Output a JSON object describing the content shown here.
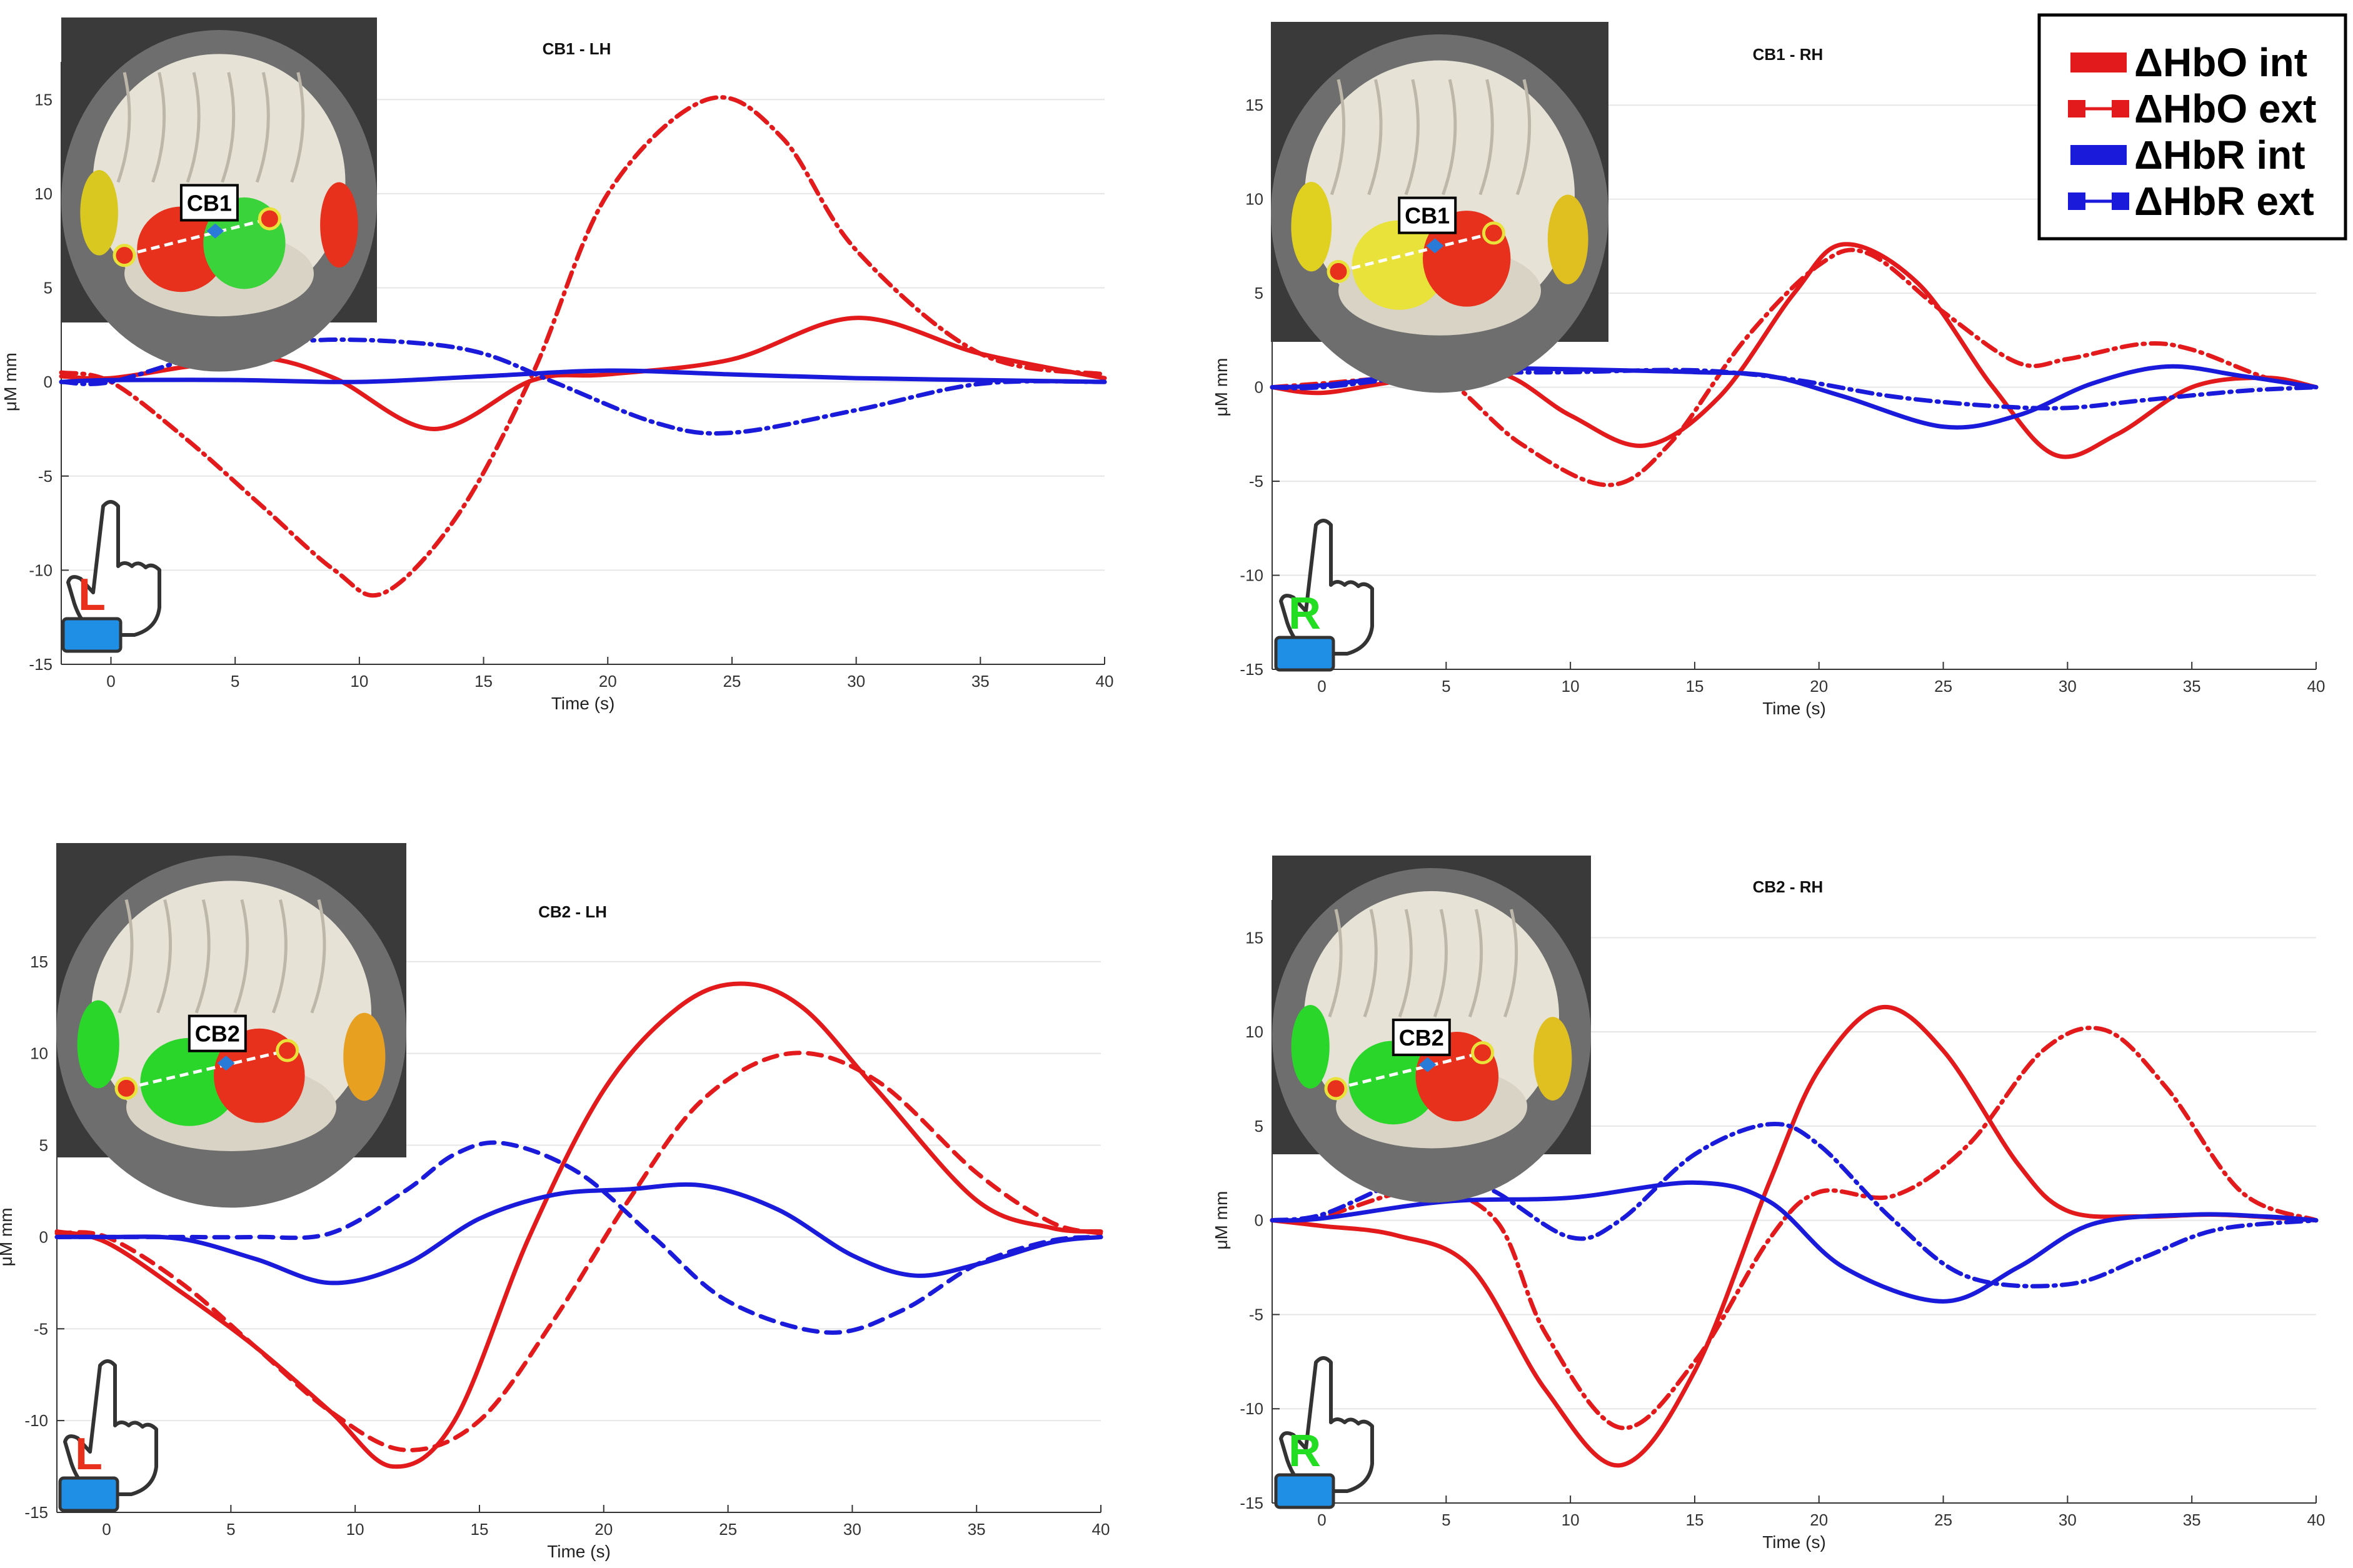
{
  "chart_data": [
    {
      "type": "line",
      "title": "CB1 - LH",
      "xlabel": "Time (s)",
      "ylabel": "μM mm",
      "xlim": [
        -2,
        40
      ],
      "ylim": [
        -15,
        17
      ],
      "xticks": [
        0,
        5,
        10,
        15,
        20,
        25,
        30,
        35,
        40
      ],
      "yticks": [
        -15,
        -10,
        -5,
        0,
        5,
        10,
        15
      ],
      "grid": true,
      "inset_label": "CB1",
      "hand_letter": "L",
      "hand_letter_color": "#e8301c",
      "series": [
        {
          "name": "ΔHbO int",
          "color": "#e31a1c",
          "style": "solid",
          "x": [
            -2,
            0,
            3,
            6,
            9,
            13,
            17,
            20,
            25,
            30,
            35,
            40
          ],
          "y": [
            0.3,
            0.2,
            0.8,
            1.3,
            0.2,
            -2.5,
            0.1,
            0.4,
            1.2,
            3.4,
            1.5,
            0.2
          ]
        },
        {
          "name": "ΔHbO ext",
          "color": "#e31a1c",
          "style": "dashdot",
          "x": [
            -2,
            0,
            3,
            6,
            9,
            11,
            14,
            17,
            20,
            24,
            27,
            30,
            35,
            40
          ],
          "y": [
            0.5,
            0,
            -3,
            -6.5,
            -10,
            -11.2,
            -7,
            0.5,
            10,
            15,
            13,
            7,
            1.5,
            0.4
          ]
        },
        {
          "name": "ΔHbR int",
          "color": "#1a1adb",
          "style": "solid",
          "x": [
            -2,
            0,
            5,
            10,
            15,
            20,
            25,
            30,
            35,
            40
          ],
          "y": [
            0,
            0.1,
            0.1,
            0,
            0.3,
            0.6,
            0.4,
            0.2,
            0.1,
            0
          ]
        },
        {
          "name": "ΔHbR ext",
          "color": "#1a1adb",
          "style": "dashdot",
          "x": [
            -2,
            0,
            4,
            8,
            12,
            15,
            18,
            22,
            25,
            30,
            35,
            40
          ],
          "y": [
            0,
            0,
            1.5,
            2.2,
            2.1,
            1.5,
            -0.1,
            -2.2,
            -2.7,
            -1.5,
            -0.1,
            0
          ]
        }
      ]
    },
    {
      "type": "line",
      "title": "CB1 - RH",
      "xlabel": "Time (s)",
      "ylabel": "μM mm",
      "xlim": [
        -2,
        40
      ],
      "ylim": [
        -15,
        17
      ],
      "xticks": [
        0,
        5,
        10,
        15,
        20,
        25,
        30,
        35,
        40
      ],
      "yticks": [
        -15,
        -10,
        -5,
        0,
        5,
        10,
        15
      ],
      "grid": true,
      "inset_label": "CB1",
      "hand_letter": "R",
      "hand_letter_color": "#22dd22",
      "series": [
        {
          "name": "ΔHbO int",
          "color": "#e31a1c",
          "style": "solid",
          "x": [
            -2,
            0,
            3,
            7,
            10,
            13,
            16,
            19,
            21,
            24,
            27,
            29.5,
            32,
            35,
            38,
            40
          ],
          "y": [
            0,
            -0.3,
            0.3,
            0.8,
            -1.5,
            -3.1,
            -0.5,
            5,
            7.6,
            5.5,
            0,
            -3.6,
            -2.5,
            0,
            0.5,
            0
          ],
          "smooth": true
        },
        {
          "name": "ΔHbO ext",
          "color": "#e31a1c",
          "style": "dashdot",
          "x": [
            -2,
            0,
            3,
            5,
            8,
            11.5,
            14,
            17,
            20,
            22,
            25,
            28,
            30,
            33,
            35,
            38,
            40
          ],
          "y": [
            0,
            0.2,
            0.5,
            0.4,
            -3,
            -5.2,
            -3,
            2.5,
            6.5,
            7.1,
            4,
            1.3,
            1.5,
            2.3,
            2,
            0.5,
            0
          ]
        },
        {
          "name": "ΔHbR int",
          "color": "#1a1adb",
          "style": "solid",
          "x": [
            -2,
            0,
            3,
            5,
            8,
            12,
            15,
            18,
            21,
            25,
            28,
            31,
            34,
            37,
            40
          ],
          "y": [
            0,
            0.1,
            0.6,
            1,
            1,
            0.9,
            0.8,
            0.6,
            -0.5,
            -2.1,
            -1.5,
            0.2,
            1.1,
            0.6,
            0
          ]
        },
        {
          "name": "ΔHbR ext",
          "color": "#1a1adb",
          "style": "dashdot",
          "x": [
            -2,
            0,
            5,
            10,
            15,
            19,
            23,
            27,
            30,
            33,
            37,
            40
          ],
          "y": [
            0,
            0,
            0.7,
            0.8,
            0.9,
            0.4,
            -0.5,
            -1,
            -1.1,
            -0.7,
            -0.2,
            0
          ]
        }
      ]
    },
    {
      "type": "line",
      "title": "CB2 - LH",
      "xlabel": "Time (s)",
      "ylabel": "μM mm",
      "xlim": [
        -2,
        40
      ],
      "ylim": [
        -15,
        17
      ],
      "xticks": [
        0,
        5,
        10,
        15,
        20,
        25,
        30,
        35,
        40
      ],
      "yticks": [
        -15,
        -10,
        -5,
        0,
        5,
        10,
        15
      ],
      "grid": true,
      "inset_label": "CB2",
      "hand_letter": "L",
      "hand_letter_color": "#e8301c",
      "series": [
        {
          "name": "ΔHbO int",
          "color": "#e31a1c",
          "style": "solid",
          "x": [
            -2,
            0,
            3,
            6,
            9,
            11.5,
            14,
            17,
            20,
            23,
            25.5,
            28,
            31,
            35,
            38,
            40
          ],
          "y": [
            0.3,
            -0.3,
            -3,
            -6,
            -9.5,
            -12.5,
            -10,
            0,
            8,
            12.5,
            13.8,
            12.5,
            8,
            2,
            0.5,
            0.3
          ]
        },
        {
          "name": "ΔHbO ext",
          "color": "#e31a1c",
          "style": "dashed",
          "x": [
            -2,
            0,
            3,
            6,
            9,
            12,
            15,
            18,
            21,
            24,
            27.5,
            31,
            35,
            38,
            40
          ],
          "y": [
            0.2,
            0,
            -2.5,
            -6,
            -9.5,
            -11.6,
            -10,
            -4.5,
            2,
            7.5,
            10,
            8.5,
            3.5,
            0.8,
            0.2
          ]
        },
        {
          "name": "ΔHbR int",
          "color": "#1a1adb",
          "style": "solid",
          "x": [
            -2,
            0,
            3,
            6,
            9,
            12,
            15,
            18,
            21,
            24,
            27,
            30,
            32.5,
            35,
            38,
            40
          ],
          "y": [
            0,
            0,
            -0.1,
            -1.2,
            -2.5,
            -1.5,
            1,
            2.3,
            2.6,
            2.8,
            1.5,
            -1,
            -2.1,
            -1.5,
            -0.3,
            0
          ]
        },
        {
          "name": "ΔHbR ext",
          "color": "#1a1adb",
          "style": "dashed",
          "x": [
            -2,
            0,
            3,
            6,
            9,
            12,
            14,
            16,
            19,
            22,
            25,
            29,
            32,
            35,
            38,
            40
          ],
          "y": [
            0,
            0,
            0,
            0,
            0.2,
            2.5,
            4.5,
            5.1,
            3.5,
            0,
            -3.5,
            -5.2,
            -4,
            -1.5,
            -0.2,
            0
          ]
        }
      ]
    },
    {
      "type": "line",
      "title": "CB2 - RH",
      "xlabel": "Time (s)",
      "ylabel": "μM mm",
      "xlim": [
        -2,
        40
      ],
      "ylim": [
        -15,
        17
      ],
      "xticks": [
        0,
        5,
        10,
        15,
        20,
        25,
        30,
        35,
        40
      ],
      "yticks": [
        -15,
        -10,
        -5,
        0,
        5,
        10,
        15
      ],
      "grid": true,
      "inset_label": "CB2",
      "hand_letter": "R",
      "hand_letter_color": "#22dd22",
      "series": [
        {
          "name": "ΔHbO int",
          "color": "#e31a1c",
          "style": "solid",
          "x": [
            -2,
            0,
            3,
            6,
            9,
            12,
            15,
            18,
            20,
            22.5,
            25,
            28,
            30,
            33,
            36,
            40
          ],
          "y": [
            0,
            -0.3,
            -0.8,
            -2.5,
            -9,
            -13,
            -8,
            2,
            8,
            11.3,
            9,
            3,
            0.5,
            0.2,
            0.3,
            0
          ]
        },
        {
          "name": "ΔHbO ext",
          "color": "#e31a1c",
          "style": "dashdot",
          "x": [
            -2,
            0,
            4,
            7,
            9,
            12,
            15,
            18,
            20,
            23,
            26,
            29,
            31.5,
            34,
            37,
            40
          ],
          "y": [
            0,
            0.2,
            1.6,
            0,
            -6,
            -11,
            -7.5,
            -1,
            1.5,
            1.3,
            4,
            9,
            10.1,
            7,
            1.5,
            0
          ]
        },
        {
          "name": "ΔHbR int",
          "color": "#1a1adb",
          "style": "solid",
          "x": [
            -2,
            0,
            5,
            10,
            15,
            18,
            21,
            25,
            28,
            31,
            35,
            38,
            40
          ],
          "y": [
            0,
            0.1,
            1,
            1.2,
            2,
            1,
            -2.5,
            -4.3,
            -2.5,
            -0.2,
            0.3,
            0.2,
            0
          ]
        },
        {
          "name": "ΔHbR ext",
          "color": "#1a1adb",
          "style": "dashdot",
          "x": [
            -2,
            0,
            3,
            5,
            7,
            10,
            12,
            15,
            18,
            20,
            23,
            26,
            30,
            33,
            36,
            40
          ],
          "y": [
            0,
            0.3,
            2,
            2.6,
            1.5,
            -0.9,
            0,
            3.5,
            5.1,
            4,
            0,
            -3,
            -3.4,
            -2,
            -0.5,
            0
          ]
        }
      ]
    }
  ],
  "legend": {
    "placement": "top-right",
    "entries": [
      {
        "label": "ΔHbO int",
        "color": "#e31a1c",
        "style": "solid"
      },
      {
        "label": "ΔHbO ext",
        "color": "#e31a1c",
        "style": "marker"
      },
      {
        "label": "ΔHbR int",
        "color": "#1a1adb",
        "style": "solid"
      },
      {
        "label": "ΔHbR ext",
        "color": "#1a1adb",
        "style": "marker"
      }
    ]
  }
}
